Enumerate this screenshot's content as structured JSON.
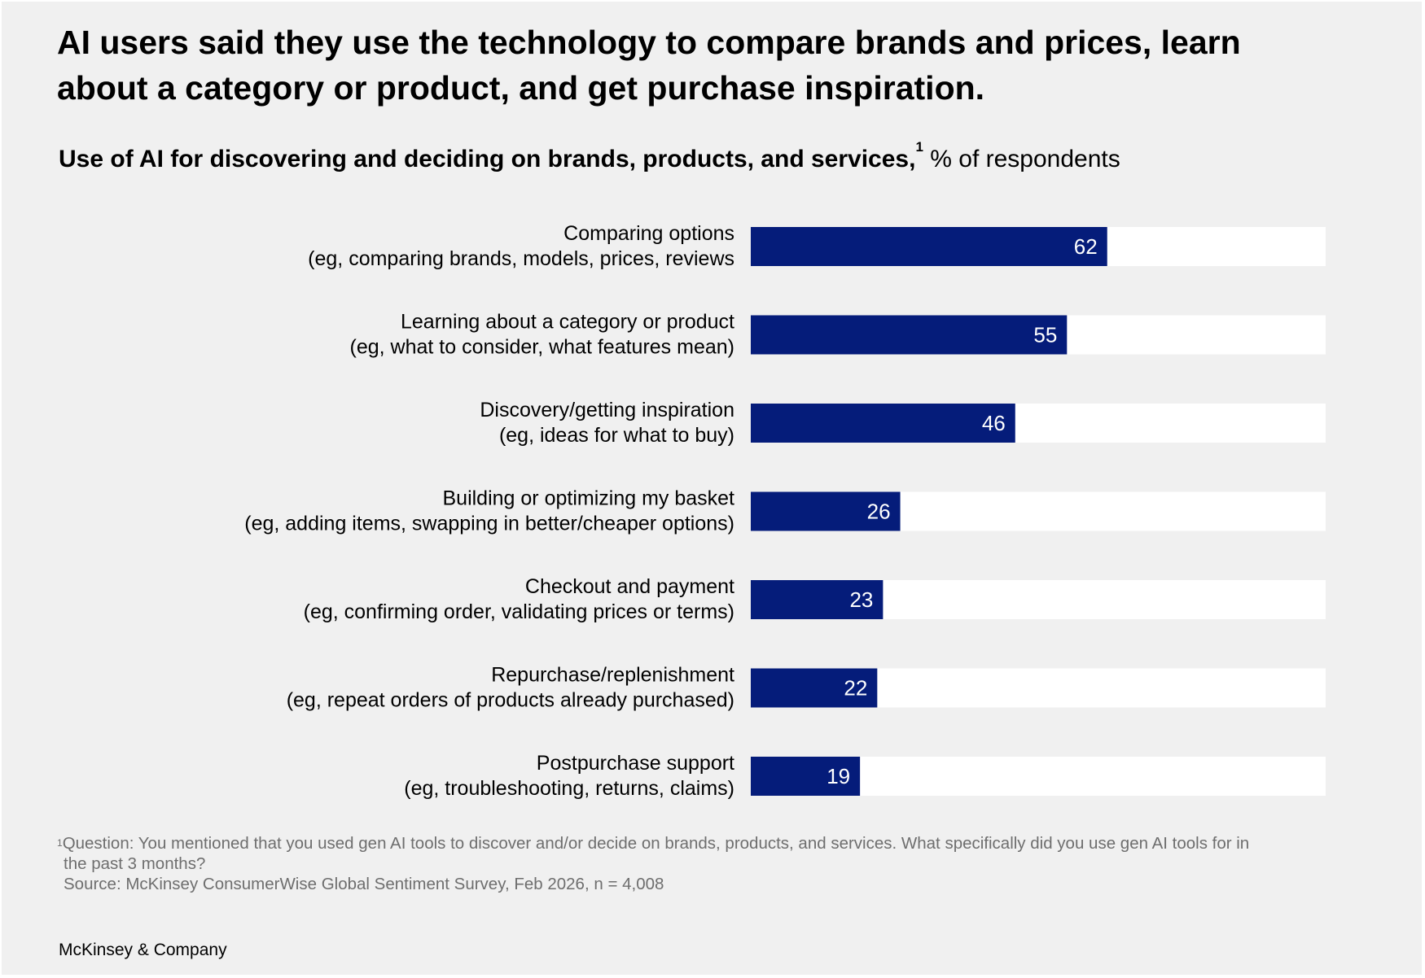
{
  "headline": "AI users said they use the technology to compare brands and prices, learn about a category or product, and get purchase inspiration.",
  "subtitle": {
    "bold_text": "Use of AI for discovering and deciding on brands, products, and services,",
    "footnote_marker": "1",
    "unit_text": "% of respondents"
  },
  "chart_data": {
    "type": "bar",
    "orientation": "horizontal",
    "title": "Use of AI for discovering and deciding on brands, products, and services",
    "unit": "% of respondents",
    "xlim": [
      0,
      100
    ],
    "grid": false,
    "colors": {
      "bar": "#051c7a",
      "track": "#ffffff",
      "value_label": "#ffffff"
    },
    "categories": [
      {
        "label": "Comparing options",
        "detail": "(eg, comparing brands, models, prices, reviews"
      },
      {
        "label": "Learning about a category or product",
        "detail": "(eg, what to consider, what features mean)"
      },
      {
        "label": "Discovery/getting inspiration",
        "detail": "(eg, ideas for what to buy)"
      },
      {
        "label": "Building or optimizing my basket",
        "detail": "(eg, adding items, swapping in better/cheaper options)"
      },
      {
        "label": "Checkout and payment",
        "detail": "(eg, confirming order, validating prices or terms)"
      },
      {
        "label": "Repurchase/replenishment",
        "detail": "(eg, repeat orders of products already purchased)"
      },
      {
        "label": "Postpurchase support",
        "detail": "(eg, troubleshooting, returns, claims)"
      }
    ],
    "values": [
      62,
      55,
      46,
      26,
      23,
      22,
      19
    ]
  },
  "footnote": {
    "marker": "1",
    "question_line1": "Question: You mentioned that you used gen AI tools to discover and/or decide on brands, products, and services. What specifically did you use gen AI tools for in",
    "question_line2": "the past 3 months?",
    "source": "Source: McKinsey ConsumerWise Global Sentiment Survey, Feb 2026, n = 4,008"
  },
  "brand": "McKinsey & Company"
}
